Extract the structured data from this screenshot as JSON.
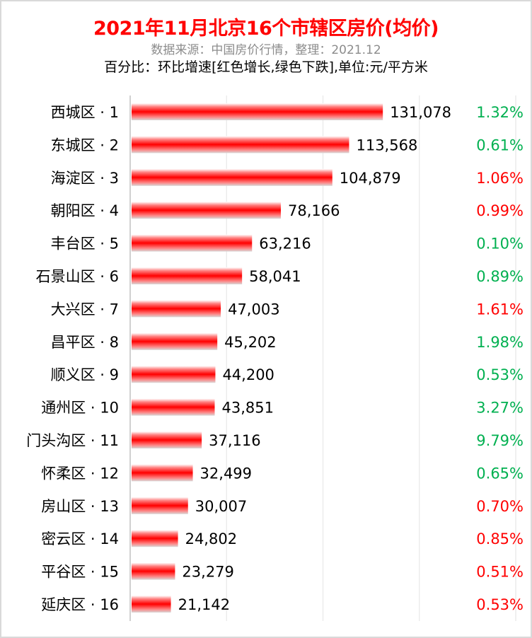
{
  "chart_data": {
    "type": "bar",
    "orientation": "horizontal",
    "title": "2021年11月北京16个市辖区房价(均价)",
    "subtitle": "数据来源：中国房价行情，整理：2021.12",
    "note": "百分比：环比增速[红色增长,绿色下跌],单位:元/平方米",
    "categories": [
      "西城区 · 1",
      "东城区 · 2",
      "海淀区 · 3",
      "朝阳区 · 4",
      "丰台区 · 5",
      "石景山区 · 6",
      "大兴区 · 7",
      "昌平区 · 8",
      "顺义区 · 9",
      "通州区 · 10",
      "门头沟区 · 11",
      "怀柔区 · 12",
      "房山区 · 13",
      "密云区 · 14",
      "平谷区 · 15",
      "延庆区 · 16"
    ],
    "values": [
      131078,
      113568,
      104879,
      78166,
      63216,
      58041,
      47003,
      45202,
      44200,
      43851,
      37116,
      32499,
      30007,
      24802,
      23279,
      21142
    ],
    "value_labels": [
      "131,078",
      "113,568",
      "104,879",
      "78,166",
      "63,216",
      "58,041",
      "47,003",
      "45,202",
      "44,200",
      "43,851",
      "37,116",
      "32,499",
      "30,007",
      "24,802",
      "23,279",
      "21,142"
    ],
    "mom_change": [
      "1.32%",
      "0.61%",
      "1.06%",
      "0.99%",
      "0.10%",
      "0.89%",
      "1.61%",
      "1.98%",
      "0.53%",
      "3.27%",
      "9.79%",
      "0.65%",
      "0.70%",
      "0.85%",
      "0.51%",
      "0.53%"
    ],
    "mom_color": [
      "green",
      "green",
      "red",
      "red",
      "green",
      "green",
      "red",
      "green",
      "green",
      "green",
      "green",
      "green",
      "red",
      "red",
      "red",
      "red"
    ],
    "xlim": [
      0,
      200000
    ],
    "grid_step": 50000,
    "grid": true,
    "x_tick_labels_shown": false,
    "colors": {
      "bar": "#ff0000",
      "red": "#ff0000",
      "green": "#00b050",
      "title": "#ff0000",
      "subtitle": "#8c8c8c"
    }
  }
}
